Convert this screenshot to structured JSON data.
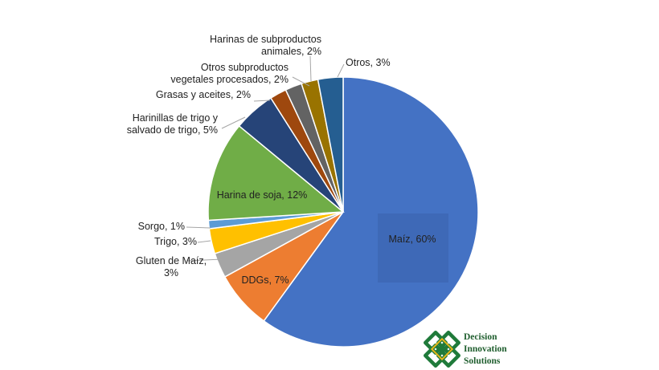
{
  "chart_data": {
    "type": "pie",
    "slices": [
      {
        "label": "Maíz, 60%",
        "value": 60,
        "color": "#4472C4"
      },
      {
        "label": "DDGs, 7%",
        "value": 7,
        "color": "#ED7D31"
      },
      {
        "label": "Gluten de Maíz, 3%",
        "value": 3,
        "color": "#A5A5A5"
      },
      {
        "label": "Trigo, 3%",
        "value": 3,
        "color": "#FFC000"
      },
      {
        "label": "Sorgo, 1%",
        "value": 1,
        "color": "#5B9BD5"
      },
      {
        "label": "Harina de soja, 12%",
        "value": 12,
        "color": "#70AD47"
      },
      {
        "label": "Harinillas de trigo y salvado de trigo, 5%",
        "value": 5,
        "color": "#264478"
      },
      {
        "label": "Grasas y aceites, 2%",
        "value": 2,
        "color": "#9E480E"
      },
      {
        "label": "Otros subproductos vegetales procesados, 2%",
        "value": 2,
        "color": "#636363"
      },
      {
        "label": "Harinas de subproductos animales, 2%",
        "value": 2,
        "color": "#997300"
      },
      {
        "label": "Otros, 3%",
        "value": 3,
        "color": "#255E91"
      }
    ],
    "label_lines": [
      [
        "Maíz, 60%"
      ],
      [
        "DDGs, 7%"
      ],
      [
        "Gluten de Maíz,",
        "3%"
      ],
      [
        "Trigo, 3%"
      ],
      [
        "Sorgo, 1%"
      ],
      [
        "Harina de soja, 12%"
      ],
      [
        "Harinillas de trigo y",
        "salvado de trigo, 5%"
      ],
      [
        "Grasas y aceites, 2%"
      ],
      [
        "Otros subproductos",
        "vegetales procesados, 2%"
      ],
      [
        "Harinas de subproductos",
        "animales, 2%"
      ],
      [
        "Otros, 3%"
      ]
    ],
    "title": "",
    "legend": "none"
  },
  "logo": {
    "line1": "Decision",
    "line2": "Innovation",
    "line3": "Solutions",
    "color": "#1f5e2e"
  }
}
